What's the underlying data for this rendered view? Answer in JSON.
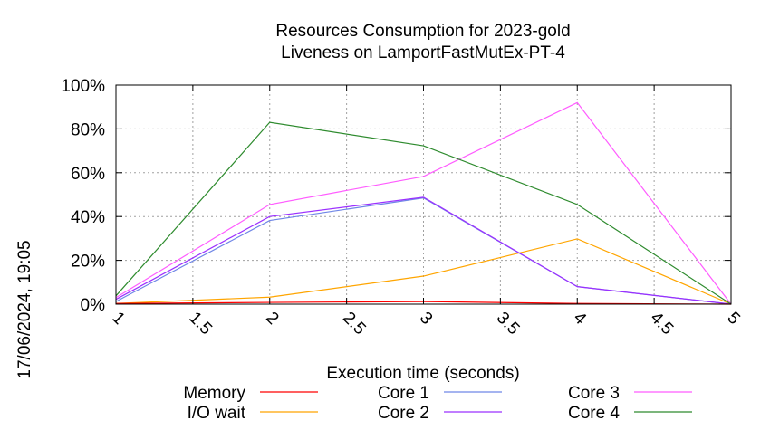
{
  "chart_data": {
    "type": "line",
    "title": "Resources Consumption for 2023-gold",
    "subtitle": "Liveness on LamportFastMutEx-PT-4",
    "xlabel": "Execution time (seconds)",
    "ylabel": "",
    "xlim": [
      1,
      5
    ],
    "ylim": [
      0,
      100
    ],
    "x_ticks": [
      "1",
      "1.5",
      "2",
      "2.5",
      "3",
      "3.5",
      "4",
      "4.5",
      "5"
    ],
    "y_ticks": [
      "0%",
      "20%",
      "40%",
      "60%",
      "80%",
      "100%"
    ],
    "grid": true,
    "x": [
      1,
      2,
      3,
      4,
      5
    ],
    "series": [
      {
        "name": "Memory",
        "color": "#ff0000",
        "values": [
          0.3,
          0.8,
          1.2,
          0.3,
          0
        ]
      },
      {
        "name": "I/O wait",
        "color": "#ffa500",
        "values": [
          0.3,
          3.2,
          12.8,
          29.8,
          0
        ]
      },
      {
        "name": "Core 1",
        "color": "#6f86e6",
        "values": [
          1.2,
          38.2,
          48.5,
          8.0,
          0
        ]
      },
      {
        "name": "Core 2",
        "color": "#9b30ff",
        "values": [
          2.2,
          40.0,
          48.8,
          8.0,
          0
        ]
      },
      {
        "name": "Core 3",
        "color": "#ff5cff",
        "values": [
          3.0,
          45.5,
          58.3,
          92.0,
          0
        ]
      },
      {
        "name": "Core 4",
        "color": "#2e8b2e",
        "values": [
          3.8,
          83.0,
          72.3,
          45.5,
          0
        ]
      }
    ]
  },
  "side_label": "17/06/2024, 19:05"
}
